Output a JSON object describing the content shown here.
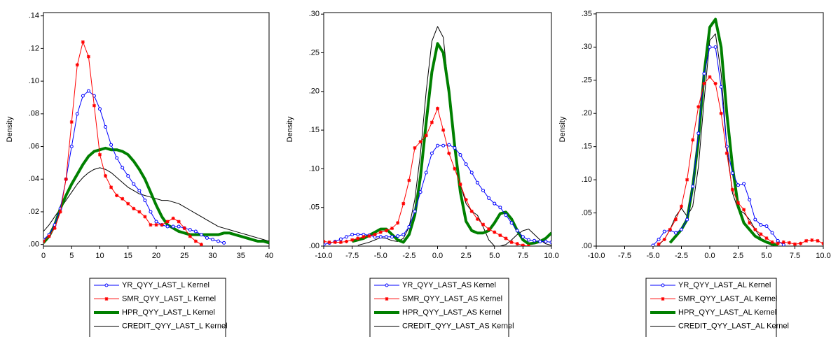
{
  "chart_data": [
    {
      "type": "line",
      "ylabel": "Density",
      "xlim": [
        0,
        40
      ],
      "xticks": [
        0,
        5,
        10,
        15,
        20,
        25,
        30,
        35,
        40
      ],
      "ylim": [
        -0.001,
        0.142
      ],
      "yticks": [
        {
          "value": 0,
          "label": ".00"
        },
        {
          "value": 0.02,
          "label": ".02"
        },
        {
          "value": 0.04,
          "label": ".04"
        },
        {
          "value": 0.06,
          "label": ".06"
        },
        {
          "value": 0.08,
          "label": ".08"
        },
        {
          "value": 0.1,
          "label": ".10"
        },
        {
          "value": 0.12,
          "label": ".12"
        },
        {
          "value": 0.14,
          "label": ".14"
        }
      ],
      "x": [
        0,
        1,
        2,
        3,
        4,
        5,
        6,
        7,
        8,
        9,
        10,
        11,
        12,
        13,
        14,
        15,
        16,
        17,
        18,
        19,
        20,
        21,
        22,
        23,
        24,
        25,
        26,
        27,
        28,
        29,
        30,
        31,
        32,
        33,
        34,
        35,
        36,
        37,
        38,
        39,
        40
      ],
      "series": [
        {
          "name": "YR_QYY_LAST_L Kernel",
          "color": "#0000ff",
          "width": 1,
          "marker": "circle",
          "values": [
            0.003,
            0.006,
            0.012,
            0.022,
            0.04,
            0.06,
            0.08,
            0.091,
            0.094,
            0.091,
            0.083,
            0.072,
            0.061,
            0.053,
            0.047,
            0.042,
            0.037,
            0.033,
            0.027,
            0.02,
            0.014,
            0.012,
            0.011,
            0.011,
            0.011,
            0.01,
            0.009,
            0.008,
            0.006,
            0.004,
            0.003,
            0.002,
            0.001,
            null,
            null,
            null,
            null,
            null,
            null,
            null,
            null
          ]
        },
        {
          "name": "SMR_QYY_LAST_L Kernel",
          "color": "#ff0000",
          "width": 1,
          "marker": "star",
          "values": [
            0.002,
            0.005,
            0.01,
            0.02,
            0.04,
            0.075,
            0.11,
            0.124,
            0.115,
            0.085,
            0.055,
            0.042,
            0.035,
            0.03,
            0.028,
            0.025,
            0.022,
            0.02,
            0.017,
            0.012,
            0.012,
            0.012,
            0.014,
            0.016,
            0.014,
            0.01,
            0.005,
            0.002,
            0.0,
            null,
            null,
            null,
            null,
            null,
            null,
            null,
            null,
            null,
            null,
            null,
            null
          ]
        },
        {
          "name": "HPR_QYY_LAST_L Kernel",
          "color": "#008000",
          "width": 4,
          "marker": "none",
          "values": [
            0.001,
            0.005,
            0.012,
            0.022,
            0.03,
            0.037,
            0.043,
            0.049,
            0.054,
            0.057,
            0.058,
            0.059,
            0.058,
            0.058,
            0.057,
            0.055,
            0.051,
            0.046,
            0.04,
            0.032,
            0.024,
            0.017,
            0.012,
            0.01,
            0.008,
            0.007,
            0.006,
            0.006,
            0.006,
            0.006,
            0.006,
            0.006,
            0.007,
            0.007,
            0.006,
            0.005,
            0.004,
            0.003,
            0.002,
            0.002,
            0.001
          ]
        },
        {
          "name": "CREDIT_QYY_LAST_L Kernel",
          "color": "#000000",
          "width": 1,
          "marker": "none",
          "values": [
            0.008,
            0.012,
            0.017,
            0.022,
            0.027,
            0.032,
            0.037,
            0.041,
            0.044,
            0.046,
            0.047,
            0.046,
            0.044,
            0.041,
            0.038,
            0.035,
            0.033,
            0.031,
            0.03,
            0.029,
            0.028,
            0.027,
            0.027,
            0.026,
            0.025,
            0.023,
            0.021,
            0.019,
            0.017,
            0.015,
            0.013,
            0.011,
            0.01,
            0.009,
            0.008,
            0.007,
            0.006,
            0.005,
            0.004,
            0.003,
            0.002
          ]
        }
      ]
    },
    {
      "type": "line",
      "ylabel": "Density",
      "xlim": [
        -10,
        10
      ],
      "xticks": [
        {
          "value": -10,
          "label": "-10.0"
        },
        {
          "value": -7.5,
          "label": "-7.5"
        },
        {
          "value": -5,
          "label": "-5.0"
        },
        {
          "value": -2.5,
          "label": "-2.5"
        },
        {
          "value": 0,
          "label": "0.0"
        },
        {
          "value": 2.5,
          "label": "2.5"
        },
        {
          "value": 5,
          "label": "5.0"
        },
        {
          "value": 7.5,
          "label": "7.5"
        },
        {
          "value": 10,
          "label": "10.0"
        }
      ],
      "ylim": [
        0,
        0.302
      ],
      "yticks": [
        {
          "value": 0,
          "label": ".00"
        },
        {
          "value": 0.05,
          "label": ".05"
        },
        {
          "value": 0.1,
          "label": ".10"
        },
        {
          "value": 0.15,
          "label": ".15"
        },
        {
          "value": 0.2,
          "label": ".20"
        },
        {
          "value": 0.25,
          "label": ".25"
        },
        {
          "value": 0.3,
          "label": ".30"
        }
      ],
      "x": [
        -10,
        -9.5,
        -9,
        -8.5,
        -8,
        -7.5,
        -7,
        -6.5,
        -6,
        -5.5,
        -5,
        -4.5,
        -4,
        -3.5,
        -3,
        -2.5,
        -2,
        -1.5,
        -1,
        -0.5,
        0,
        0.5,
        1,
        1.5,
        2,
        2.5,
        3,
        3.5,
        4,
        4.5,
        5,
        5.5,
        6,
        6.5,
        7,
        7.5,
        8,
        8.5,
        9,
        9.5,
        10
      ],
      "series": [
        {
          "name": "YR_QYY_LAST_AS Kernel",
          "color": "#0000ff",
          "width": 1,
          "marker": "circle",
          "values": [
            0.002,
            0.004,
            0.006,
            0.009,
            0.012,
            0.015,
            0.015,
            0.015,
            0.014,
            0.012,
            0.012,
            0.012,
            0.012,
            0.013,
            0.015,
            0.025,
            0.045,
            0.07,
            0.095,
            0.12,
            0.13,
            0.13,
            0.131,
            0.127,
            0.118,
            0.106,
            0.095,
            0.082,
            0.072,
            0.062,
            0.055,
            0.05,
            0.04,
            0.03,
            0.02,
            0.012,
            0.008,
            0.007,
            0.006,
            0.006,
            0.005
          ]
        },
        {
          "name": "SMR_QYY_LAST_AS Kernel",
          "color": "#ff0000",
          "width": 1,
          "marker": "star",
          "values": [
            0.006,
            0.005,
            0.005,
            0.005,
            0.006,
            0.008,
            0.01,
            0.012,
            0.013,
            0.015,
            0.018,
            0.02,
            0.023,
            0.03,
            0.055,
            0.085,
            0.127,
            0.135,
            0.143,
            0.16,
            0.178,
            0.15,
            0.12,
            0.1,
            0.08,
            0.06,
            0.045,
            0.035,
            0.028,
            0.022,
            0.018,
            0.014,
            0.01,
            0.005,
            0.003,
            0.001,
            0.0,
            null,
            null,
            null,
            null
          ]
        },
        {
          "name": "HPR_QYY_LAST_AS Kernel",
          "color": "#008000",
          "width": 4,
          "marker": "none",
          "values": [
            null,
            null,
            null,
            null,
            null,
            0.006,
            0.008,
            0.01,
            0.014,
            0.018,
            0.022,
            0.022,
            0.015,
            0.008,
            0.005,
            0.015,
            0.04,
            0.09,
            0.16,
            0.225,
            0.262,
            0.25,
            0.2,
            0.13,
            0.07,
            0.032,
            0.02,
            0.017,
            0.017,
            0.02,
            0.03,
            0.042,
            0.044,
            0.035,
            0.02,
            0.008,
            0.003,
            0.004,
            0.006,
            0.01,
            0.017
          ]
        },
        {
          "name": "CREDIT_QYY_LAST_AS Kernel",
          "color": "#000000",
          "width": 1,
          "marker": "none",
          "values": [
            null,
            null,
            null,
            null,
            null,
            null,
            0.001,
            0.003,
            0.005,
            0.008,
            0.011,
            0.01,
            0.007,
            0.006,
            0.01,
            0.025,
            0.06,
            0.12,
            0.2,
            0.265,
            0.284,
            0.27,
            0.2,
            0.13,
            0.08,
            0.055,
            0.045,
            0.04,
            0.025,
            0.008,
            0.0,
            0.0,
            0.002,
            0.008,
            0.015,
            0.02,
            0.022,
            0.015,
            0.008,
            0.003,
            0.001
          ]
        }
      ]
    },
    {
      "type": "line",
      "ylabel": "Density",
      "xlim": [
        -10,
        10
      ],
      "xticks": [
        {
          "value": -10,
          "label": "-10.0"
        },
        {
          "value": -7.5,
          "label": "-7.5"
        },
        {
          "value": -5,
          "label": "-5.0"
        },
        {
          "value": -2.5,
          "label": "-2.5"
        },
        {
          "value": 0,
          "label": "0.0"
        },
        {
          "value": 2.5,
          "label": "2.5"
        },
        {
          "value": 5,
          "label": "5.0"
        },
        {
          "value": 7.5,
          "label": "7.5"
        },
        {
          "value": 10,
          "label": "10.0"
        }
      ],
      "ylim": [
        0,
        0.352
      ],
      "yticks": [
        {
          "value": 0,
          "label": ".00"
        },
        {
          "value": 0.05,
          "label": ".05"
        },
        {
          "value": 0.1,
          "label": ".10"
        },
        {
          "value": 0.15,
          "label": ".15"
        },
        {
          "value": 0.2,
          "label": ".20"
        },
        {
          "value": 0.25,
          "label": ".25"
        },
        {
          "value": 0.3,
          "label": ".30"
        },
        {
          "value": 0.35,
          "label": ".35"
        }
      ],
      "x": [
        -10,
        -9.5,
        -9,
        -8.5,
        -8,
        -7.5,
        -7,
        -6.5,
        -6,
        -5.5,
        -5,
        -4.5,
        -4,
        -3.5,
        -3,
        -2.5,
        -2,
        -1.5,
        -1,
        -0.5,
        0,
        0.5,
        1,
        1.5,
        2,
        2.5,
        3,
        3.5,
        4,
        4.5,
        5,
        5.5,
        6,
        6.5,
        7,
        7.5,
        8,
        8.5,
        9,
        9.5,
        10
      ],
      "series": [
        {
          "name": "YR_QYY_LAST_AL Kernel",
          "color": "#0000ff",
          "width": 1,
          "marker": "circle",
          "values": [
            null,
            null,
            null,
            null,
            null,
            null,
            null,
            null,
            null,
            null,
            0.001,
            0.01,
            0.022,
            0.024,
            0.02,
            0.025,
            0.04,
            0.09,
            0.17,
            0.26,
            0.3,
            0.3,
            0.24,
            0.15,
            0.11,
            0.092,
            0.094,
            0.07,
            0.04,
            0.032,
            0.03,
            0.02,
            0.008,
            0.002,
            null,
            null,
            null,
            null,
            null,
            null,
            null
          ]
        },
        {
          "name": "SMR_QYY_LAST_AL Kernel",
          "color": "#ff0000",
          "width": 1,
          "marker": "star",
          "values": [
            null,
            null,
            null,
            null,
            null,
            null,
            null,
            null,
            null,
            null,
            null,
            0.003,
            0.01,
            0.025,
            0.04,
            0.06,
            0.1,
            0.16,
            0.21,
            0.245,
            0.255,
            0.245,
            0.2,
            0.14,
            0.085,
            0.065,
            0.055,
            0.035,
            0.025,
            0.018,
            0.012,
            0.006,
            0.004,
            0.006,
            0.005,
            0.003,
            0.004,
            0.008,
            0.009,
            0.008,
            0.004
          ]
        },
        {
          "name": "HPR_QYY_LAST_AL Kernel",
          "color": "#008000",
          "width": 4,
          "marker": "none",
          "values": [
            null,
            null,
            null,
            null,
            null,
            null,
            null,
            null,
            null,
            null,
            null,
            null,
            null,
            0.005,
            0.015,
            0.025,
            0.04,
            0.09,
            0.16,
            0.26,
            0.33,
            0.342,
            0.3,
            0.2,
            0.12,
            0.06,
            0.035,
            0.025,
            0.015,
            0.01,
            0.006,
            0.003,
            0.001,
            null,
            null,
            null,
            null,
            null,
            null,
            null,
            null
          ]
        },
        {
          "name": "CREDIT_QYY_LAST_AL Kernel",
          "color": "#000000",
          "width": 1,
          "marker": "none",
          "values": [
            null,
            null,
            null,
            null,
            null,
            null,
            null,
            null,
            null,
            null,
            null,
            0.002,
            0.01,
            0.025,
            0.045,
            0.057,
            0.045,
            0.06,
            0.12,
            0.22,
            0.31,
            0.32,
            0.26,
            0.15,
            0.08,
            0.055,
            0.05,
            0.04,
            0.025,
            0.012,
            0.005,
            0.001,
            null,
            null,
            null,
            null,
            null,
            null,
            null,
            null,
            null
          ]
        }
      ]
    }
  ]
}
